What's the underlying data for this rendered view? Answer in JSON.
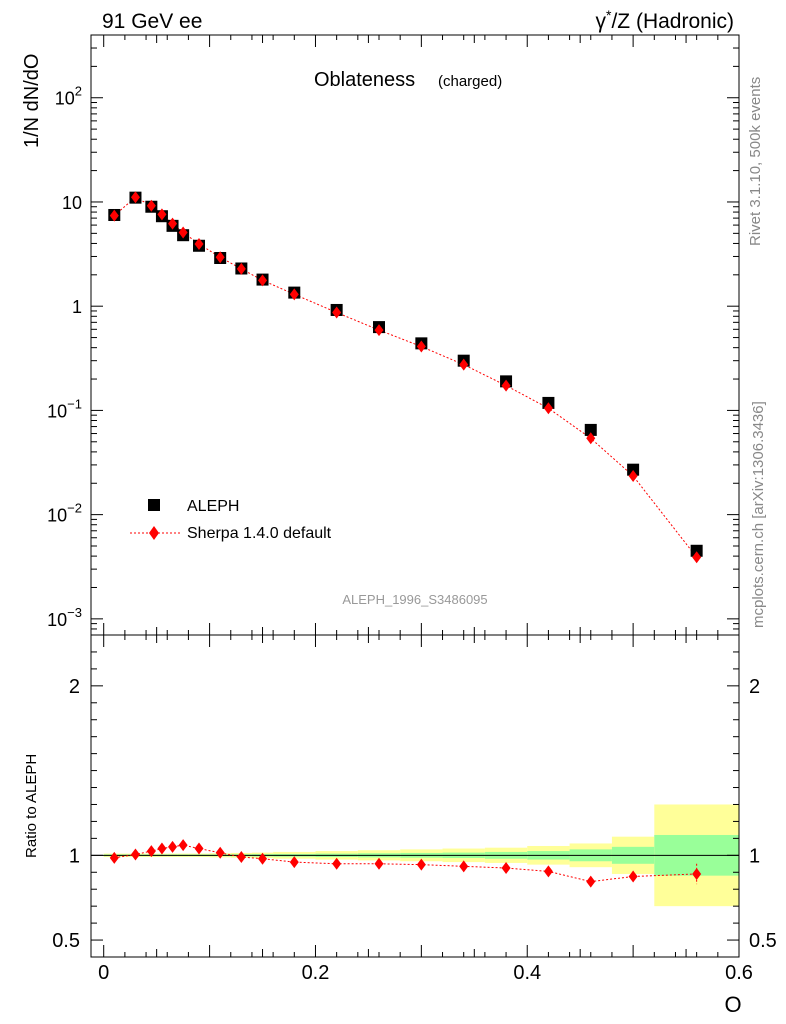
{
  "header": {
    "left": "91 GeV ee",
    "right_sup": "*",
    "right_rest": "/Z (Hadronic)",
    "right_symbol": "γ"
  },
  "side_labels": {
    "rivet": "Rivet 3.1.10,  500k events",
    "mcplots": "mcplots.cern.ch [arXiv:1306.3436]"
  },
  "chart_data": [
    {
      "type": "scatter",
      "title": "Oblateness",
      "subtitle": "(charged)",
      "ylabel": "1/N dN/dO",
      "xlabel": "O",
      "yscale": "log",
      "ylim": [
        0.0007,
        400
      ],
      "xlim": [
        -0.012,
        0.6
      ],
      "analysis_id": "ALEPH_1996_S3486095",
      "ytick_labels": [
        {
          "value": 100,
          "base": "10",
          "exp": "2"
        },
        {
          "value": 10,
          "text": "10"
        },
        {
          "value": 1,
          "text": "1"
        },
        {
          "value": 0.1,
          "base": "10",
          "exp": "−1"
        },
        {
          "value": 0.01,
          "base": "10",
          "exp": "−2"
        },
        {
          "value": 0.001,
          "base": "10",
          "exp": "−3"
        }
      ],
      "legend": {
        "position": "lower-left",
        "entries": [
          "ALEPH",
          "Sherpa 1.4.0 default"
        ]
      },
      "x": [
        0.01,
        0.03,
        0.045,
        0.055,
        0.065,
        0.075,
        0.09,
        0.11,
        0.13,
        0.15,
        0.18,
        0.22,
        0.26,
        0.3,
        0.34,
        0.38,
        0.42,
        0.46,
        0.5,
        0.56
      ],
      "series": [
        {
          "name": "ALEPH",
          "color": "#000000",
          "marker": "square",
          "values": [
            7.5,
            11.0,
            9.0,
            7.3,
            5.9,
            4.8,
            3.8,
            2.9,
            2.3,
            1.8,
            1.35,
            0.92,
            0.63,
            0.44,
            0.3,
            0.19,
            0.118,
            0.065,
            0.027,
            0.0045
          ]
        },
        {
          "name": "Sherpa 1.4.0 default",
          "color": "#ff0000",
          "marker": "diamond",
          "values": [
            7.4,
            11.1,
            9.2,
            7.6,
            6.2,
            5.1,
            3.95,
            2.95,
            2.28,
            1.77,
            1.3,
            0.87,
            0.59,
            0.41,
            0.275,
            0.173,
            0.105,
            0.054,
            0.0235,
            0.0039
          ]
        }
      ]
    },
    {
      "type": "line",
      "ylabel": "Ratio to ALEPH",
      "xlabel": "O",
      "ylim": [
        0.4,
        2.3
      ],
      "xlim": [
        -0.012,
        0.6
      ],
      "yticks": [
        0.5,
        1,
        2
      ],
      "ytick_labels": [
        "0.5",
        "1",
        "2"
      ],
      "xticks": [
        0,
        0.2,
        0.4,
        0.6
      ],
      "xtick_labels": [
        "0",
        "0.2",
        "0.4",
        "0.6"
      ],
      "x": [
        0.01,
        0.03,
        0.045,
        0.055,
        0.065,
        0.075,
        0.09,
        0.11,
        0.13,
        0.15,
        0.18,
        0.22,
        0.26,
        0.3,
        0.34,
        0.38,
        0.42,
        0.46,
        0.5,
        0.56
      ],
      "series": [
        {
          "name": "Sherpa 1.4.0 default",
          "color": "#ff0000",
          "values": [
            0.985,
            1.005,
            1.025,
            1.04,
            1.05,
            1.06,
            1.04,
            1.015,
            0.99,
            0.98,
            0.96,
            0.95,
            0.95,
            0.945,
            0.935,
            0.925,
            0.905,
            0.845,
            0.875,
            0.89
          ],
          "errors": [
            0,
            0,
            0,
            0,
            0,
            0,
            0,
            0,
            0,
            0,
            0,
            0,
            0,
            0,
            0,
            0,
            0,
            0.015,
            0.03,
            0.06
          ]
        }
      ],
      "bands": {
        "bin_edges": [
          0.0,
          0.02,
          0.04,
          0.05,
          0.06,
          0.07,
          0.08,
          0.1,
          0.12,
          0.14,
          0.16,
          0.2,
          0.24,
          0.28,
          0.32,
          0.36,
          0.4,
          0.44,
          0.48,
          0.52,
          0.6
        ],
        "stat_err": [
          0.005,
          0.005,
          0.005,
          0.005,
          0.005,
          0.005,
          0.005,
          0.005,
          0.006,
          0.007,
          0.008,
          0.01,
          0.012,
          0.014,
          0.016,
          0.02,
          0.025,
          0.035,
          0.05,
          0.12
        ],
        "total_err": [
          0.01,
          0.01,
          0.01,
          0.01,
          0.01,
          0.01,
          0.01,
          0.012,
          0.014,
          0.016,
          0.02,
          0.025,
          0.03,
          0.035,
          0.04,
          0.045,
          0.055,
          0.07,
          0.11,
          0.3
        ],
        "stat_color": "#99ff99",
        "total_color": "#ffff99"
      }
    }
  ]
}
